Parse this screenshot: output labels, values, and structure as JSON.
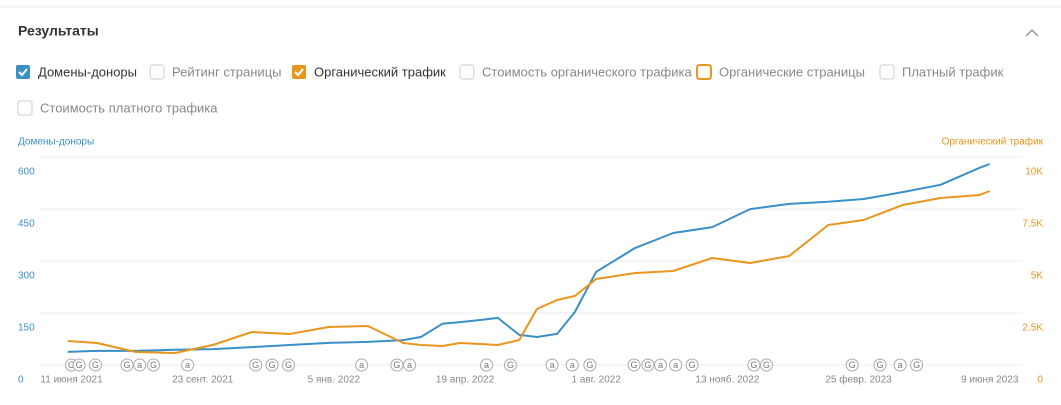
{
  "header": {
    "title": "Результаты"
  },
  "filters": [
    {
      "label": "Домены-доноры",
      "checked": true,
      "color": "#3a8fc7"
    },
    {
      "label": "Рейтинг страницы",
      "checked": false
    },
    {
      "label": "Органический трафик",
      "checked": true,
      "color": "#e8961e"
    },
    {
      "label": "Стоимость органического трафика",
      "checked": false
    },
    {
      "label": "Органические страницы",
      "checked": false,
      "color": "#e8961e"
    },
    {
      "label": "Платный трафик",
      "checked": false
    },
    {
      "label": "Стоимость платного трафика",
      "checked": false
    }
  ],
  "chart_data": {
    "type": "line",
    "x": [
      "2021-06-08",
      "2021-07-01",
      "2021-08-01",
      "2021-09-01",
      "2021-10-01",
      "2021-11-01",
      "2021-12-01",
      "2022-01-01",
      "2022-02-01",
      "2022-03-01",
      "2022-03-15",
      "2022-04-01",
      "2022-04-15",
      "2022-05-01",
      "2022-05-15",
      "2022-06-01",
      "2022-06-15",
      "2022-07-01",
      "2022-07-15",
      "2022-08-01",
      "2022-09-01",
      "2022-10-01",
      "2022-11-01",
      "2022-12-01",
      "2023-01-01",
      "2023-02-01",
      "2023-03-01",
      "2023-04-01",
      "2023-05-01",
      "2023-06-01",
      "2023-06-09"
    ],
    "series": [
      {
        "name": "Домены-доноры",
        "color": "#3a8fc7",
        "values": [
          81,
          84,
          84,
          87,
          89,
          95,
          101,
          107,
          110,
          115,
          124,
          162,
          167,
          173,
          179,
          130,
          124,
          133,
          196,
          312,
          381,
          424,
          441,
          493,
          508,
          514,
          522,
          542,
          563,
          612,
          623
        ]
      },
      {
        "name": "Органический трафик",
        "color": "#e8961e",
        "axis": "y2",
        "values": [
          1875,
          1779,
          1346,
          1298,
          1683,
          2308,
          2212,
          2548,
          2596,
          1779,
          1683,
          1635,
          1779,
          1731,
          1683,
          1923,
          3413,
          3846,
          4038,
          4856,
          5144,
          5240,
          5865,
          5625,
          5962,
          7452,
          7692,
          8413,
          8750,
          8894,
          9087
        ]
      }
    ],
    "xlim": [
      "2021-05-17",
      "2023-07-03"
    ],
    "xticks": [
      {
        "value": "2021-06-11",
        "label": "11 июня 2021"
      },
      {
        "value": "2021-09-23",
        "label": "23 сент. 2021"
      },
      {
        "value": "2022-01-05",
        "label": "5 янв. 2022"
      },
      {
        "value": "2022-04-19",
        "label": "19 апр. 2022"
      },
      {
        "value": "2022-08-01",
        "label": "1 авг. 2022"
      },
      {
        "value": "2022-11-13",
        "label": "13 нояб. 2022"
      },
      {
        "value": "2023-02-25",
        "label": "25 февр. 2023"
      },
      {
        "value": "2023-06-09",
        "label": "9 июня 2023"
      }
    ],
    "ylim": [
      0,
      660
    ],
    "yticks": [
      0,
      150,
      300,
      450,
      600
    ],
    "y2lim": [
      0,
      11000
    ],
    "y2ticks": [
      0,
      {
        "value": 2500,
        "label": "2.5K"
      },
      {
        "value": 5000,
        "label": "5K"
      },
      {
        "value": 7500,
        "label": "7.5K"
      },
      {
        "value": 10000,
        "label": "10K"
      }
    ],
    "grid": true,
    "events": [
      {
        "label": "G",
        "date": "2021-06-11"
      },
      {
        "label": "G",
        "date": "2021-06-17"
      },
      {
        "label": "G",
        "date": "2021-06-30"
      },
      {
        "label": "G",
        "date": "2021-07-25"
      },
      {
        "label": "a",
        "date": "2021-08-04"
      },
      {
        "label": "G",
        "date": "2021-08-15"
      },
      {
        "label": "a",
        "date": "2021-09-11"
      },
      {
        "label": "G",
        "date": "2021-11-04"
      },
      {
        "label": "G",
        "date": "2021-11-17"
      },
      {
        "label": "G",
        "date": "2021-11-30"
      },
      {
        "label": "a",
        "date": "2022-01-27"
      },
      {
        "label": "G",
        "date": "2022-02-24"
      },
      {
        "label": "a",
        "date": "2022-03-06"
      },
      {
        "label": "a",
        "date": "2022-05-06"
      },
      {
        "label": "G",
        "date": "2022-05-25"
      },
      {
        "label": "a",
        "date": "2022-06-27"
      },
      {
        "label": "a",
        "date": "2022-07-13"
      },
      {
        "label": "G",
        "date": "2022-07-27"
      },
      {
        "label": "G",
        "date": "2022-08-31"
      },
      {
        "label": "G",
        "date": "2022-09-11"
      },
      {
        "label": "a",
        "date": "2022-09-21"
      },
      {
        "label": "a",
        "date": "2022-10-03"
      },
      {
        "label": "G",
        "date": "2022-10-16"
      },
      {
        "label": "G",
        "date": "2022-12-04"
      },
      {
        "label": "G",
        "date": "2022-12-14"
      },
      {
        "label": "G",
        "date": "2023-02-20"
      },
      {
        "label": "G",
        "date": "2023-03-14"
      },
      {
        "label": "a",
        "date": "2023-03-30"
      },
      {
        "label": "G",
        "date": "2023-04-12"
      }
    ]
  }
}
